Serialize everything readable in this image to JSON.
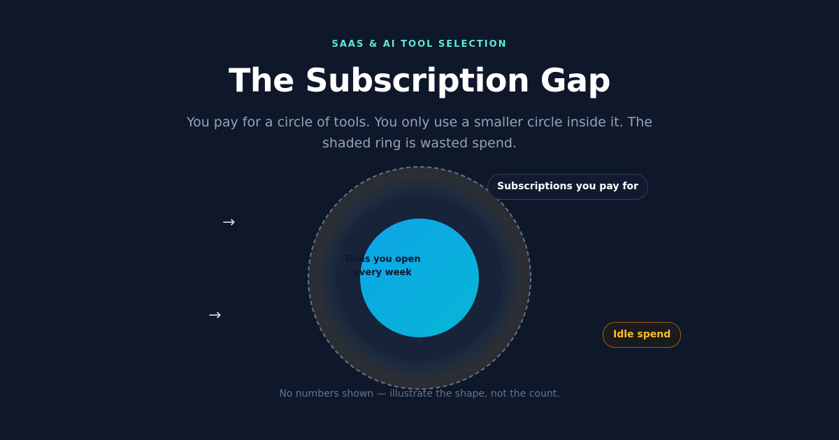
{
  "header": {
    "eyebrow": "SAAS & AI TOOL SELECTION",
    "title": "The Subscription Gap",
    "subtitle": "You pay for a circle of tools. You only use a smaller circle inside it. The shaded ring is wasted spend."
  },
  "diagram": {
    "inner_label": "Tools you open every week",
    "outer_label": "Subscriptions you pay for",
    "ring_label": "Idle spend",
    "arrow_glyph": "→"
  },
  "footnote": "No numbers shown — illustrate the shape, not the count.",
  "colors": {
    "background": "#0f172a",
    "accent_teal": "#5eead4",
    "inner_circle_start": "#0ea5e9",
    "inner_circle_end": "#06b6d4",
    "idle_amber": "#fbbf24",
    "dashed_outline": "#64748b"
  }
}
